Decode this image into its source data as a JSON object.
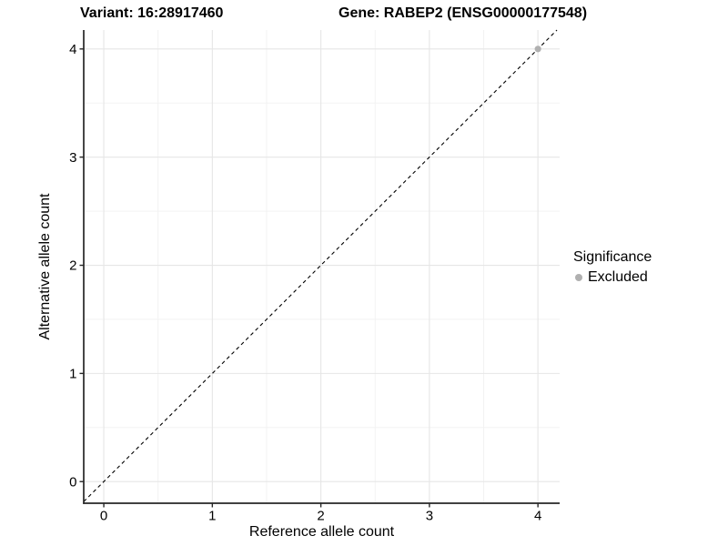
{
  "chart_data": {
    "type": "scatter",
    "title_left": "Variant: 16:28917460",
    "title_right": "Gene: RABEP2 (ENSG00000177548)",
    "xlabel": "Reference allele count",
    "ylabel": "Alternative allele count",
    "xlim": [
      -0.185,
      4.2
    ],
    "ylim": [
      -0.2,
      4.175
    ],
    "x_ticks": [
      0,
      1,
      2,
      3,
      4
    ],
    "y_ticks": [
      0,
      1,
      2,
      3,
      4
    ],
    "x_minor_ticks": [
      0.5,
      1.5,
      2.5,
      3.5
    ],
    "y_minor_ticks": [
      0.5,
      1.5,
      2.5,
      3.5
    ],
    "grid": true,
    "series": [
      {
        "name": "Excluded",
        "color": "#b0b0b0",
        "points": [
          {
            "x": 4,
            "y": 4
          }
        ]
      }
    ],
    "reference_line": {
      "type": "identity",
      "slope": 1,
      "intercept": 0,
      "style": "dashed",
      "color": "#000000"
    },
    "legend": {
      "title": "Significance",
      "position": "right",
      "items": [
        {
          "label": "Excluded",
          "color": "#b0b0b0"
        }
      ]
    },
    "colors": {
      "background": "#ffffff",
      "grid_major": "#e6e6e6",
      "grid_minor": "#f1f1f1",
      "axis_line": "#262626",
      "text": "#000000"
    }
  }
}
